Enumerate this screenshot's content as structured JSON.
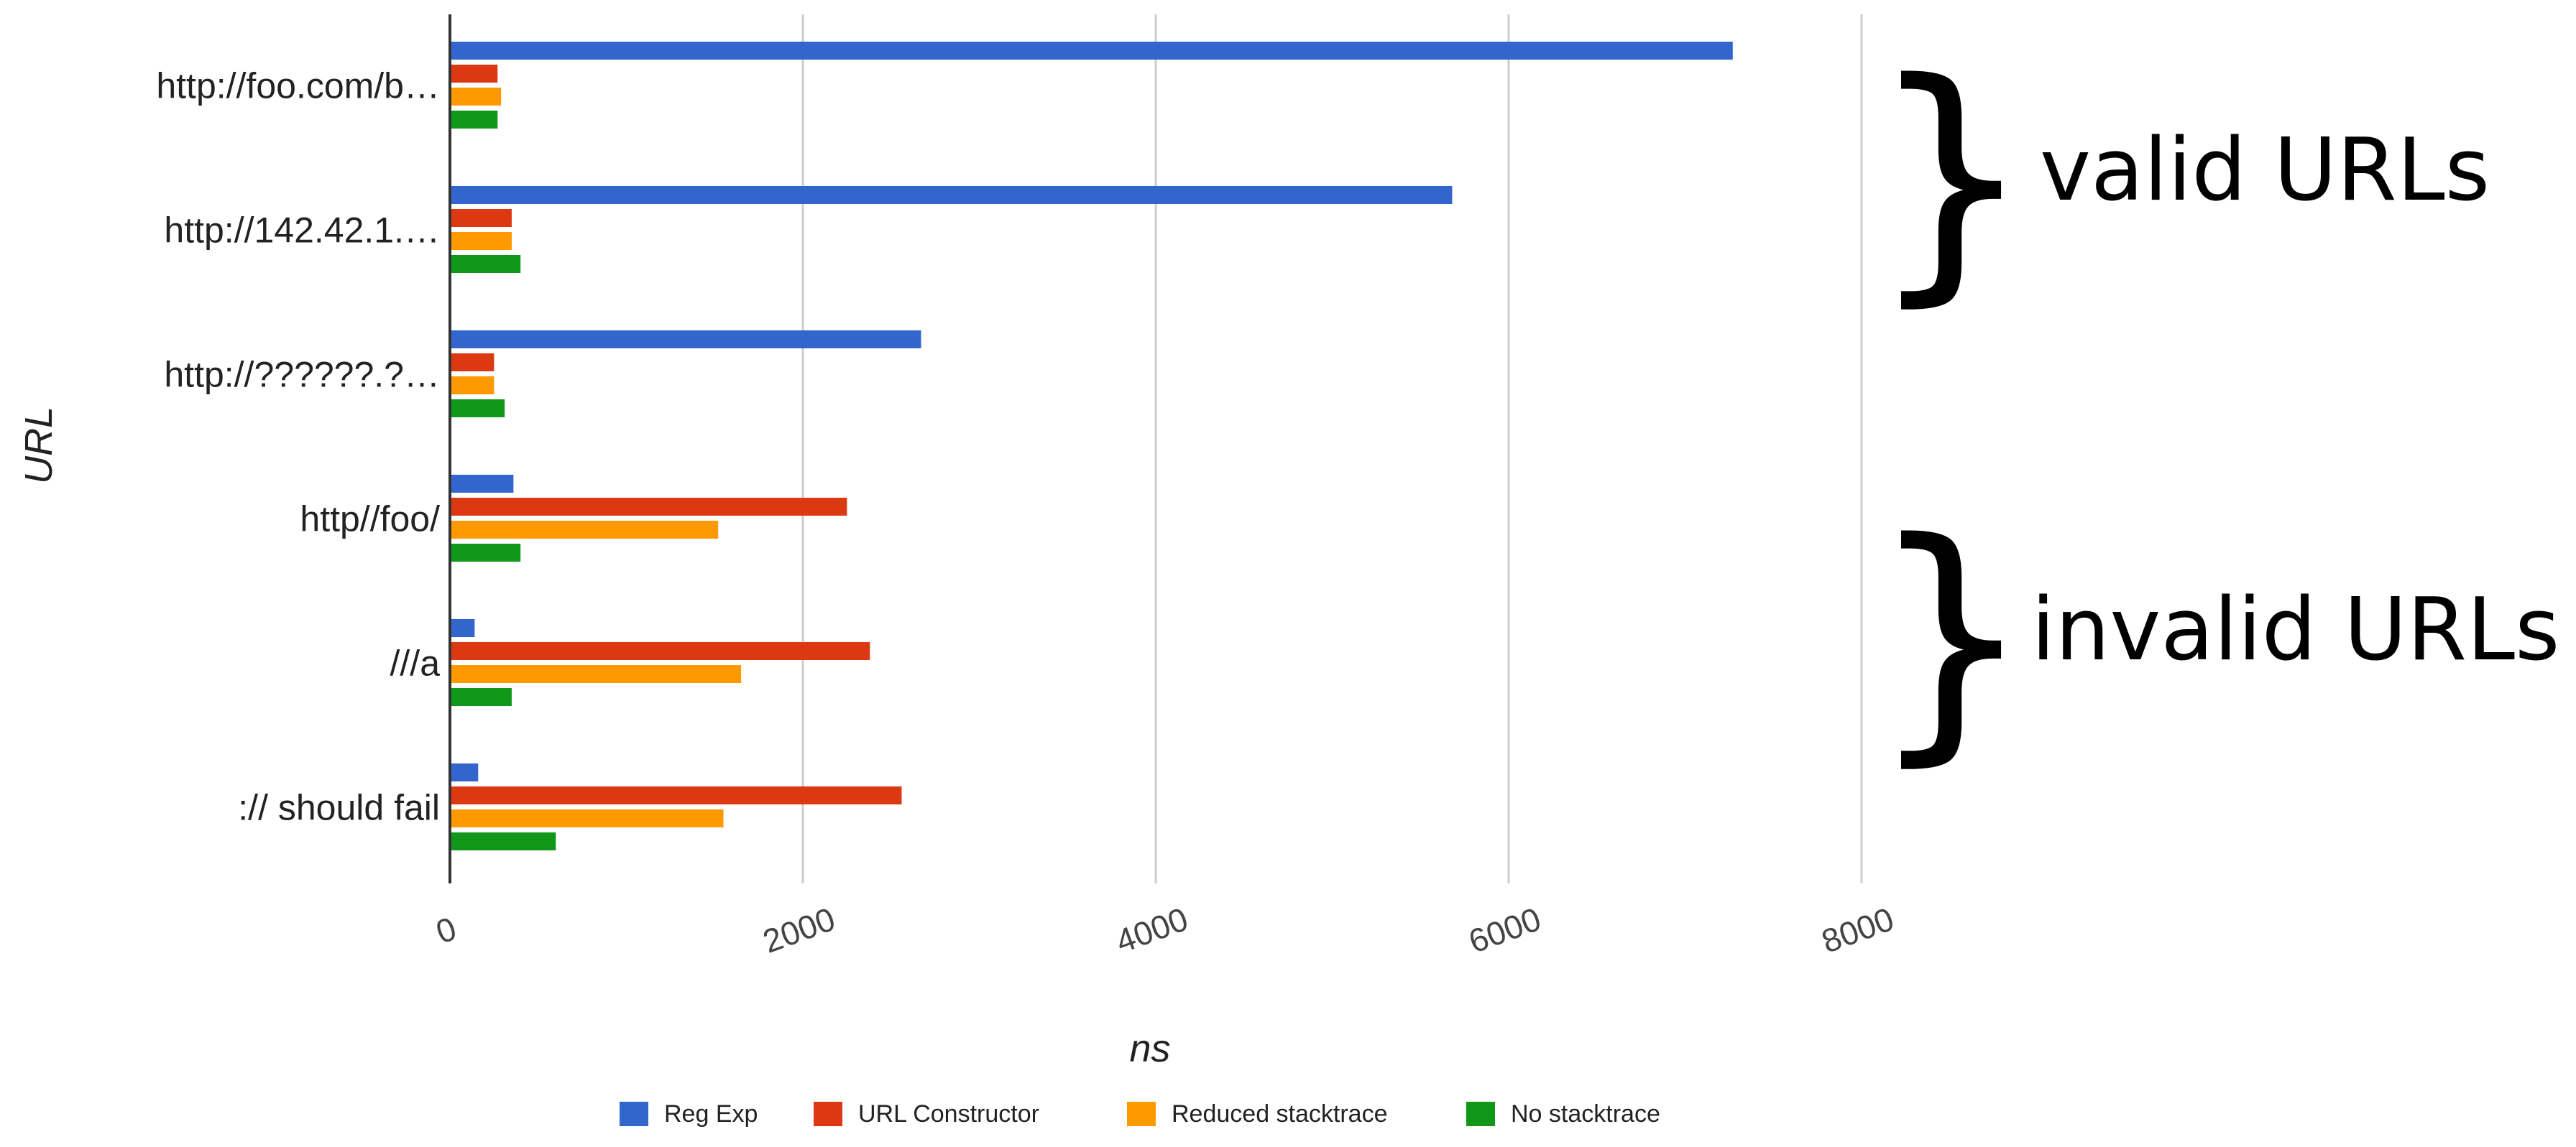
{
  "chart_data": {
    "type": "bar",
    "orientation": "horizontal",
    "title": "",
    "xlabel": "ns",
    "ylabel": "URL",
    "xlim": [
      0,
      8000
    ],
    "x_ticks": [
      "0",
      "2000",
      "4000",
      "6000",
      "8000"
    ],
    "grid": true,
    "legend_position": "bottom",
    "categories": [
      "http://foo.com/b…",
      "http://142.42.1.…",
      "http://??????.?…",
      "http//foo/",
      "///a",
      ":// should fail"
    ],
    "series": [
      {
        "name": "Reg Exp",
        "color": "#3366cc",
        "values": [
          7270,
          5680,
          2670,
          360,
          140,
          160
        ]
      },
      {
        "name": "URL Constructor",
        "color": "#dc3912",
        "values": [
          270,
          350,
          250,
          2250,
          2380,
          2560
        ]
      },
      {
        "name": "Reduced stacktrace",
        "color": "#ff9900",
        "values": [
          290,
          350,
          250,
          1520,
          1650,
          1550
        ]
      },
      {
        "name": "No stacktrace",
        "color": "#109618",
        "values": [
          270,
          400,
          310,
          400,
          350,
          600
        ]
      }
    ],
    "annotations": [
      {
        "text": "valid URLs",
        "symbol": "}"
      },
      {
        "text": "invalid URLs",
        "symbol": "}"
      }
    ]
  }
}
